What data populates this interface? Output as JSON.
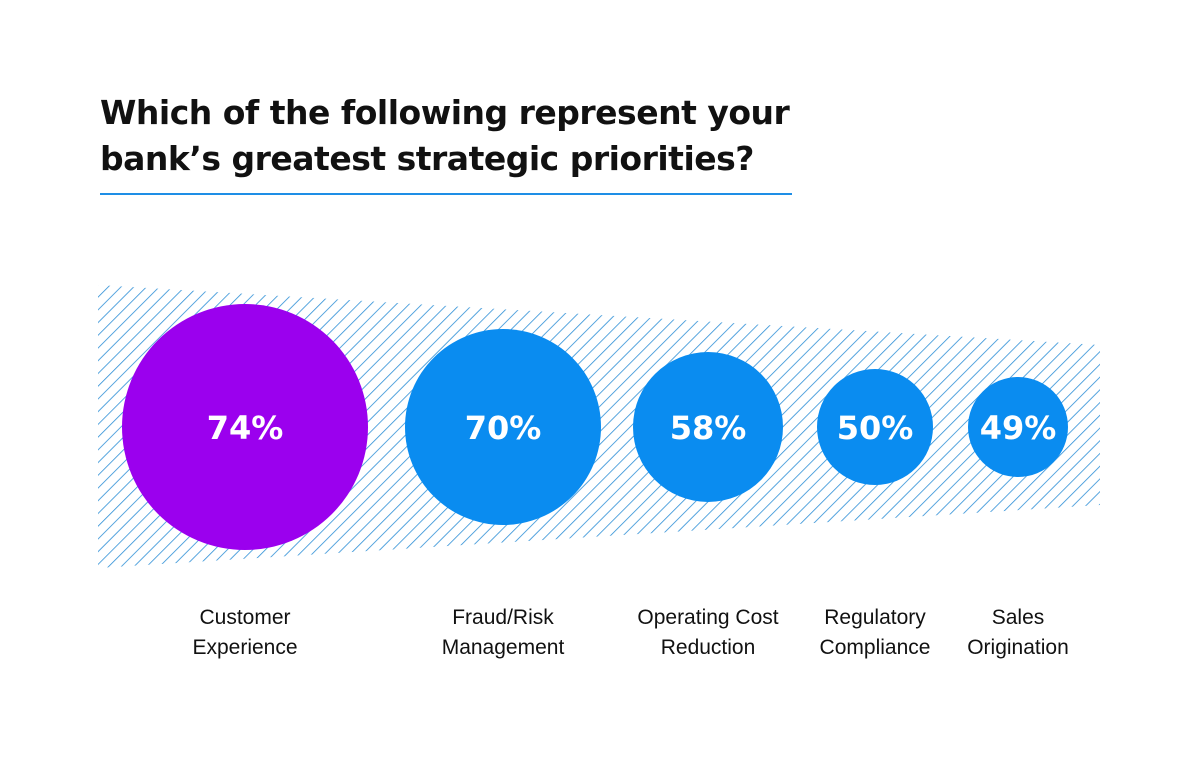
{
  "chart_data": {
    "type": "bubble",
    "title": "Which of the following represent your bank’s greatest strategic priorities?",
    "categories": [
      [
        "Customer",
        "Experience"
      ],
      [
        "Fraud/Risk",
        "Management"
      ],
      [
        "Operating Cost",
        "Reduction"
      ],
      [
        "Regulatory",
        "Compliance"
      ],
      [
        "Sales",
        "Origination"
      ]
    ],
    "values": [
      74,
      70,
      58,
      50,
      49
    ],
    "value_labels": [
      "74%",
      "70%",
      "58%",
      "50%",
      "49%"
    ],
    "highlight_index": 0,
    "colors": {
      "highlight": "#9b00ee",
      "default": "#0a8cf0",
      "hatch": "#2d8fd6",
      "rule": "#1e8ee6"
    }
  }
}
